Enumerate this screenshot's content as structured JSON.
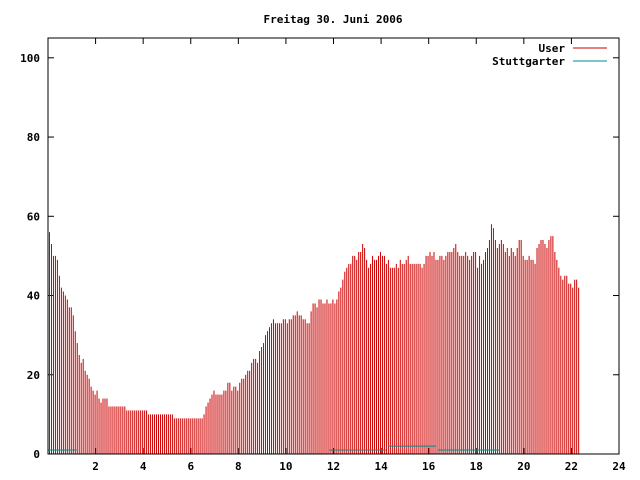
{
  "chart_data": {
    "type": "bar",
    "title": "Freitag 30. Juni 2006",
    "xlabel": "",
    "ylabel": "",
    "xlim": [
      0,
      24
    ],
    "ylim": [
      0,
      105
    ],
    "x_ticks": [
      "2",
      "4",
      "6",
      "8",
      "10",
      "12",
      "14",
      "16",
      "18",
      "20",
      "22",
      "24"
    ],
    "x_tick_values": [
      2,
      4,
      6,
      8,
      10,
      12,
      14,
      16,
      18,
      20,
      22,
      24
    ],
    "y_ticks": [
      "0",
      "20",
      "40",
      "60",
      "80",
      "100"
    ],
    "y_tick_values": [
      0,
      20,
      40,
      60,
      80,
      100
    ],
    "grid": false,
    "legend_position": "top-right",
    "series": [
      {
        "name": "User",
        "color": "#cc0000",
        "step_hours": 0.0833,
        "values": [
          56,
          53,
          50,
          50,
          49,
          45,
          42,
          41,
          40,
          39,
          37,
          37,
          35,
          31,
          28,
          25,
          23,
          24,
          21,
          20,
          19,
          17,
          16,
          15,
          16,
          14,
          13,
          14,
          14,
          14,
          12,
          12,
          12,
          12,
          12,
          12,
          12,
          12,
          12,
          11,
          11,
          11,
          11,
          11,
          11,
          11,
          11,
          11,
          11,
          11,
          10,
          10,
          10,
          10,
          10,
          10,
          10,
          10,
          10,
          10,
          10,
          10,
          10,
          9,
          9,
          9,
          9,
          9,
          9,
          9,
          9,
          9,
          9,
          9,
          9,
          9,
          9,
          9,
          10,
          12,
          13,
          14,
          15,
          16,
          15,
          15,
          15,
          15,
          16,
          16,
          18,
          18,
          16,
          17,
          17,
          16,
          18,
          19,
          19,
          20,
          21,
          21,
          23,
          24,
          24,
          23,
          26,
          27,
          28,
          30,
          31,
          32,
          33,
          34,
          33,
          33,
          33,
          33,
          34,
          34,
          33,
          34,
          34,
          35,
          35,
          36,
          35,
          35,
          34,
          34,
          33,
          33,
          36,
          38,
          38,
          37,
          39,
          39,
          38,
          38,
          39,
          38,
          38,
          39,
          38,
          39,
          41,
          42,
          44,
          46,
          47,
          48,
          48,
          50,
          50,
          49,
          51,
          51,
          53,
          52,
          49,
          47,
          48,
          50,
          49,
          49,
          50,
          51,
          50,
          50,
          48,
          49,
          47,
          47,
          47,
          48,
          47,
          49,
          48,
          48,
          49,
          50,
          48,
          48,
          48,
          48,
          48,
          48,
          47,
          48,
          50,
          50,
          51,
          50,
          51,
          49,
          49,
          50,
          50,
          49,
          50,
          51,
          51,
          51,
          52,
          53,
          51,
          50,
          50,
          50,
          51,
          50,
          49,
          50,
          51,
          51,
          47,
          50,
          48,
          49,
          51,
          52,
          54,
          58,
          57,
          54,
          52,
          53,
          54,
          53,
          51,
          52,
          50,
          52,
          51,
          50,
          52,
          54,
          54,
          50,
          49,
          49,
          50,
          49,
          49,
          48,
          52,
          53,
          54,
          54,
          53,
          52,
          54,
          55,
          55,
          51,
          49,
          47,
          45,
          44,
          45,
          45,
          43,
          43,
          42,
          44,
          44,
          42
        ]
      },
      {
        "name": "Stuttgarter",
        "color": "#008b8b",
        "points": [
          [
            0.0,
            1
          ],
          [
            1.2,
            1
          ],
          [
            11.8,
            1
          ],
          [
            14.2,
            1
          ],
          [
            14.3,
            2
          ],
          [
            16.3,
            2
          ],
          [
            16.4,
            1
          ],
          [
            19.0,
            1
          ]
        ]
      }
    ]
  }
}
